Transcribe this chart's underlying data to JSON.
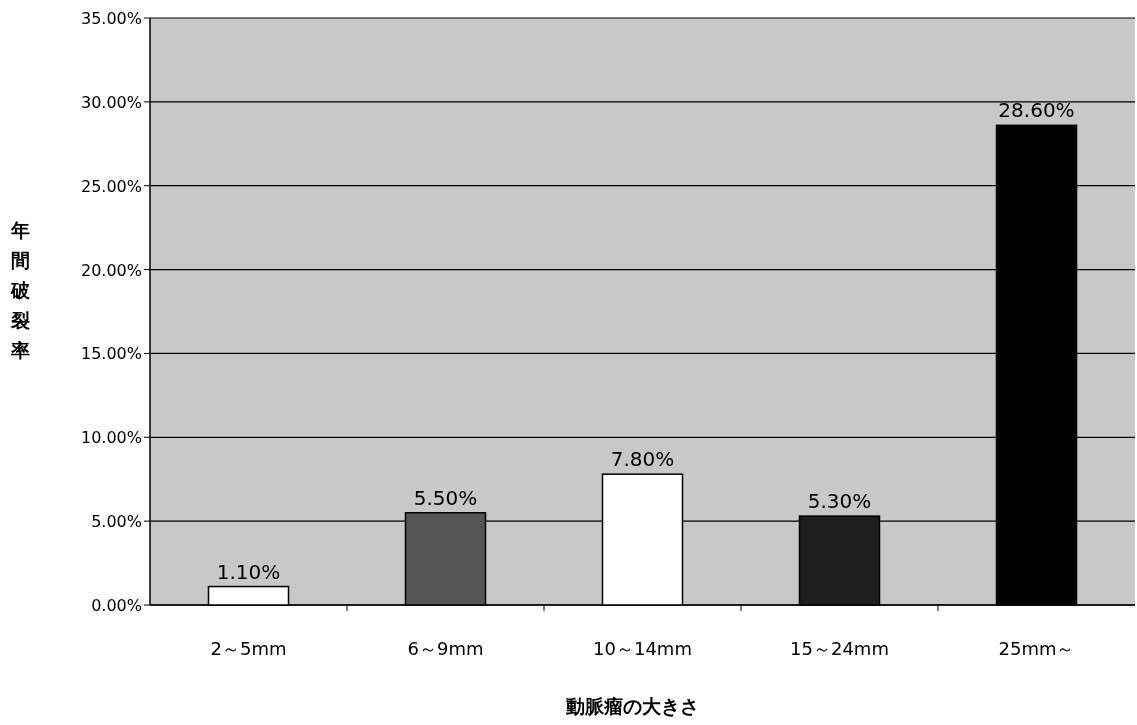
{
  "chart_data": {
    "type": "bar",
    "xlabel": "動脈瘤の大きさ",
    "ylabel": "年間破裂率",
    "categories": [
      "2～5mm",
      "6～9mm",
      "10～14mm",
      "15～24mm",
      "25mm～"
    ],
    "values": [
      1.1,
      5.5,
      7.8,
      5.3,
      28.6
    ],
    "colors": [
      "#ffffff",
      "#555555",
      "#ffffff",
      "#1e1e1e",
      "#000000"
    ],
    "value_labels": [
      "1.10%",
      "5.50%",
      "7.80%",
      "5.30%",
      "28.60%"
    ],
    "ylim": [
      0,
      35
    ],
    "yticks": [
      {
        "value": 0,
        "label": "0.00%"
      },
      {
        "value": 5,
        "label": "5.00%"
      },
      {
        "value": 10,
        "label": "10.00%"
      },
      {
        "value": 15,
        "label": "15.00%"
      },
      {
        "value": 20,
        "label": "20.00%"
      },
      {
        "value": 25,
        "label": "25.00%"
      },
      {
        "value": 30,
        "label": "30.00%"
      },
      {
        "value": 35,
        "label": "35.00%"
      }
    ],
    "grid": "y"
  }
}
